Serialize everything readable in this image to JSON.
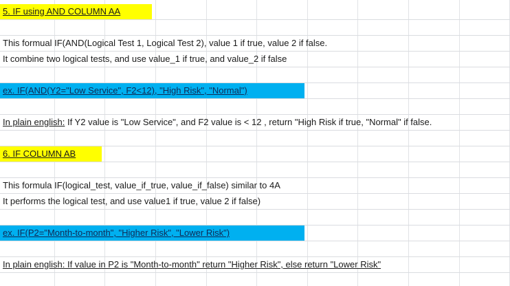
{
  "rows": {
    "header5": "5. IF using AND COLUMN AA",
    "desc5_line1": "This formual IF(AND(Logical Test 1, Logical Test 2), value 1 if true, value 2 if false.",
    "desc5_line2": "It combine two logical tests, and use value_1  if true, and value_2 if false",
    "example5": "ex. IF(AND(Y2=\"Low Service\", F2<12), \"High Risk\", \"Normal\")",
    "plain5_label": "In plain english:",
    "plain5_text": " If Y2 value is \"Low Service\", and F2 value is < 12 , return \"High Risk if true, \"Normal\" if false.",
    "header6": "6. IF COLUMN AB",
    "desc6_line1": "This formula IF(logical_test, value_if_true, value_if_false) similar to 4A",
    "desc6_line2": "It performs the logical test, and use value1 if true, value 2 if false)",
    "example6": "ex. IF(P2=\"Month-to-month\", \"Higher Risk\", \"Lower Risk\")",
    "plain6": "In plain english: If value in P2 is \"Month-to-month\" return \"Higher Risk\", else return \"Lower Risk\" "
  },
  "colors": {
    "header_fill": "#ffff00",
    "example_fill": "#00b0f0",
    "gridline": "#dadce0"
  }
}
